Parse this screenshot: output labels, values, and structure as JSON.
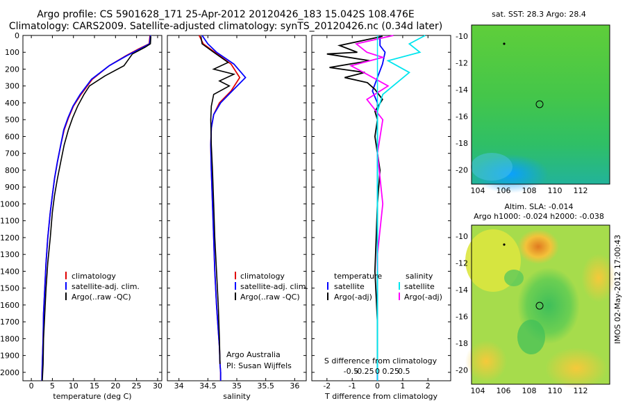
{
  "header": {
    "line1": "Argo profile: CS 5901628_171 25-Apr-2012 20120426_183 15.042S 108.476E",
    "line2": "Climatology: CARS2009. Satellite-adjusted climatology: synTS_20120426.nc (0.34d later)"
  },
  "depth_ticks": [
    "0",
    "100",
    "200",
    "300",
    "400",
    "500",
    "600",
    "700",
    "800",
    "900",
    "1000",
    "1100",
    "1200",
    "1300",
    "1400",
    "1500",
    "1600",
    "1700",
    "1800",
    "1900",
    "2000"
  ],
  "colors": {
    "climatology": "#e00000",
    "satellite": "#0000ff",
    "argo": "#000000",
    "sal_satellite": "#00e5ee",
    "sal_argo": "#ff00ff"
  },
  "panels": {
    "temperature": {
      "xlabel": "temperature (deg C)",
      "xticks": [
        "0",
        "5",
        "10",
        "15",
        "20",
        "25",
        "30"
      ],
      "legend": [
        "climatology",
        "satellite-adj. clim.",
        "Argo(..raw -QC)"
      ]
    },
    "salinity": {
      "xlabel": "salinity",
      "xticks": [
        "34",
        "34.5",
        "35",
        "35.5",
        "36"
      ],
      "legend": [
        "climatology",
        "satellite-adj. clim.",
        "Argo(..raw -QC)"
      ],
      "note1": "Argo Australia",
      "note2": "PI: Susan Wijffels"
    },
    "difference": {
      "xlabel": "T difference from climatology",
      "top_label": "S difference from climatology",
      "xticks_bottom": [
        "-2",
        "-1",
        "0",
        "1",
        "2"
      ],
      "xticks_top": [
        "-0.5",
        "-0.25",
        "0",
        "0.25",
        "0.5"
      ],
      "legend_temp_head": "temperature",
      "legend_sal_head": "salinity",
      "legend_temp": [
        "satellite",
        "Argo(-adj)"
      ],
      "legend_sal": [
        "satellite",
        "Argo(-adj)"
      ]
    }
  },
  "maps": {
    "sst_title": "sat. SST: 28.3 Argo: 28.4",
    "sla_title1": "Altim. SLA: -0.014",
    "sla_title2": "Argo h1000: -0.024 h2000: -0.038",
    "xticks": [
      "104",
      "106",
      "108",
      "110",
      "112"
    ],
    "yticks": [
      "-10",
      "-12",
      "-14",
      "-16",
      "-18",
      "-20"
    ]
  },
  "watermark": "IMOS 02-May-2012 17:00:43",
  "chart_data": [
    {
      "type": "line",
      "title": "",
      "xlabel": "temperature (deg C)",
      "ylabel": "",
      "xlim": [
        -2,
        31
      ],
      "ylim": [
        2050,
        0
      ],
      "series": [
        {
          "name": "climatology",
          "x": [
            28.2,
            28.0,
            25.5,
            22.5,
            18.5,
            14.5,
            11.8,
            10.0,
            8.8,
            7.8,
            7.0,
            6.2,
            5.5,
            5.0,
            4.5,
            3.9,
            3.5,
            3.2,
            2.9,
            2.8,
            2.6,
            2.5
          ],
          "y": [
            0,
            50,
            80,
            120,
            180,
            260,
            350,
            420,
            490,
            560,
            650,
            750,
            850,
            950,
            1050,
            1200,
            1350,
            1500,
            1650,
            1800,
            1950,
            2050
          ]
        },
        {
          "name": "satellite-adj. clim.",
          "x": [
            28.3,
            28.1,
            25.8,
            22.7,
            18.5,
            14.3,
            11.6,
            9.9,
            8.7,
            7.7,
            7.0,
            6.2,
            5.5,
            5.0,
            4.5,
            3.9,
            3.5,
            3.2,
            2.9,
            2.8,
            2.6,
            2.5
          ],
          "y": [
            0,
            50,
            80,
            120,
            180,
            260,
            350,
            420,
            490,
            560,
            650,
            750,
            850,
            950,
            1050,
            1200,
            1350,
            1500,
            1650,
            1800,
            1950,
            2050
          ]
        },
        {
          "name": "Argo(..raw -QC)",
          "x": [
            28.4,
            28.3,
            27.0,
            24.0,
            22.0,
            17.5,
            13.8,
            12.5,
            11.0,
            9.8,
            8.8,
            7.8,
            7.0,
            6.2,
            5.5,
            5.0,
            4.5,
            3.9,
            3.5,
            3.2,
            2.9,
            2.8,
            2.6
          ],
          "y": [
            5,
            50,
            70,
            110,
            180,
            240,
            300,
            350,
            420,
            490,
            560,
            650,
            750,
            850,
            950,
            1050,
            1200,
            1350,
            1500,
            1650,
            1800,
            1950,
            2050
          ]
        }
      ]
    },
    {
      "type": "line",
      "title": "",
      "xlabel": "salinity",
      "ylabel": "",
      "xlim": [
        33.8,
        36.2
      ],
      "ylim": [
        2050,
        0
      ],
      "series": [
        {
          "name": "climatology",
          "x": [
            34.35,
            34.42,
            34.62,
            34.9,
            35.05,
            34.9,
            34.7,
            34.6,
            34.56,
            34.55,
            34.56,
            34.58,
            34.6,
            34.62,
            34.65,
            34.68,
            34.7,
            34.71,
            34.72,
            34.72
          ],
          "y": [
            0,
            50,
            100,
            170,
            250,
            330,
            400,
            470,
            550,
            650,
            800,
            1000,
            1200,
            1400,
            1600,
            1750,
            1850,
            1950,
            2000,
            2050
          ]
        },
        {
          "name": "satellite-adj. clim.",
          "x": [
            34.4,
            34.5,
            34.65,
            34.95,
            35.15,
            34.92,
            34.72,
            34.6,
            34.56,
            34.55,
            34.56,
            34.58,
            34.6,
            34.62,
            34.65,
            34.68,
            34.7,
            34.71,
            34.72,
            34.72
          ],
          "y": [
            0,
            50,
            100,
            170,
            250,
            330,
            400,
            470,
            550,
            650,
            800,
            1000,
            1200,
            1400,
            1600,
            1750,
            1850,
            1950,
            2000,
            2050
          ]
        },
        {
          "name": "Argo(..raw -QC)",
          "x": [
            34.38,
            34.4,
            34.6,
            34.85,
            34.6,
            34.95,
            34.7,
            34.87,
            34.6,
            34.56,
            34.55,
            34.56,
            34.58,
            34.6,
            34.62,
            34.65,
            34.68,
            34.7,
            34.71
          ],
          "y": [
            5,
            50,
            100,
            160,
            200,
            230,
            270,
            300,
            350,
            420,
            500,
            650,
            800,
            1000,
            1200,
            1400,
            1600,
            1800,
            1950
          ]
        }
      ]
    },
    {
      "type": "line",
      "title": "",
      "xlabel": "T difference from climatology",
      "ylabel": "",
      "xlim": [
        -2.6,
        2.9
      ],
      "ylim": [
        2050,
        0
      ],
      "series": [
        {
          "name": "temperature satellite",
          "x": [
            0.1,
            0.1,
            0.3,
            0.2,
            0.0,
            -0.2,
            0.0,
            0.0,
            0.0,
            0.0,
            0.0
          ],
          "y": [
            0,
            60,
            100,
            170,
            250,
            330,
            400,
            600,
            1000,
            1500,
            2050
          ]
        },
        {
          "name": "temperature Argo(-adj)",
          "x": [
            0.2,
            -1.5,
            -0.8,
            -2.0,
            -0.3,
            -1.9,
            -0.5,
            -1.3,
            -0.4,
            -0.1,
            0.2,
            -0.1,
            0.0,
            -0.1,
            0.1,
            0.0,
            -0.1,
            0.0,
            0.0
          ],
          "y": [
            5,
            60,
            100,
            110,
            150,
            190,
            220,
            250,
            280,
            320,
            380,
            450,
            500,
            600,
            800,
            1000,
            1400,
            1700,
            1950
          ]
        },
        {
          "name": "salinity satellite",
          "x": [
            0.9,
            0.6,
            0.8,
            0.2,
            0.6,
            0.1,
            0.0,
            0.0,
            0.0,
            0.0
          ],
          "y": [
            0,
            50,
            100,
            150,
            220,
            350,
            450,
            700,
            1200,
            2000
          ]
        },
        {
          "name": "salinity Argo(-adj)",
          "x": [
            0.3,
            -0.4,
            -0.2,
            0.1,
            -0.5,
            -0.2,
            0.2,
            -0.2,
            0.1,
            0.0,
            0.1,
            0.0,
            0.0
          ],
          "y": [
            0,
            50,
            100,
            130,
            180,
            230,
            300,
            380,
            500,
            700,
            1000,
            1300,
            1400
          ]
        }
      ]
    }
  ]
}
